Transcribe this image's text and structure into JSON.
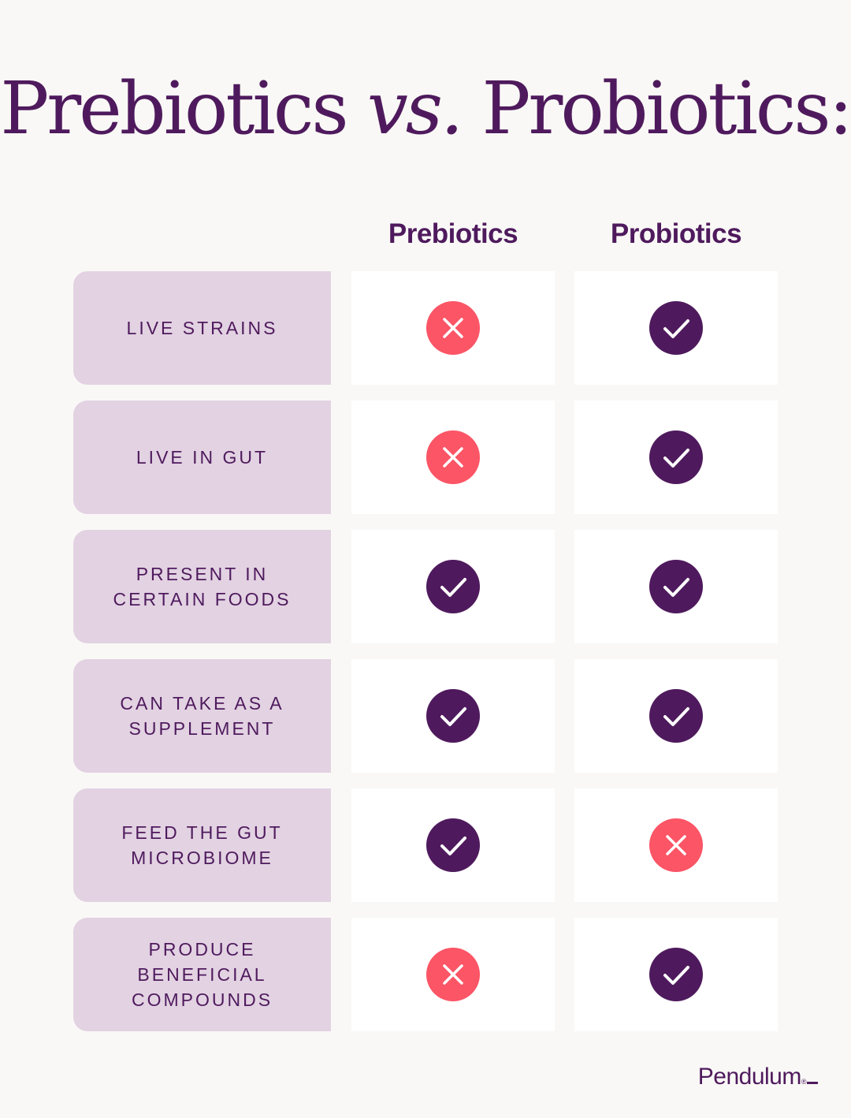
{
  "title": {
    "part1": "Prebiotics ",
    "vs": "vs.",
    "part2": " Probiotics:"
  },
  "columns": [
    "Prebiotics",
    "Probiotics"
  ],
  "rows": [
    {
      "label": "LIVE STRAINS",
      "prebiotics": "no",
      "probiotics": "yes"
    },
    {
      "label": "LIVE IN GUT",
      "prebiotics": "no",
      "probiotics": "yes"
    },
    {
      "label": "PRESENT IN\nCERTAIN FOODS",
      "prebiotics": "yes",
      "probiotics": "yes"
    },
    {
      "label": "CAN TAKE AS A\nSUPPLEMENT",
      "prebiotics": "yes",
      "probiotics": "yes"
    },
    {
      "label": "FEED THE GUT\nMICROBIOME",
      "prebiotics": "yes",
      "probiotics": "no"
    },
    {
      "label": "PRODUCE\nBENEFICIAL\nCOMPOUNDS",
      "prebiotics": "no",
      "probiotics": "yes"
    }
  ],
  "icons": {
    "yes": "check-icon",
    "no": "x-icon"
  },
  "colors": {
    "brand": "#4f1a5d",
    "yes": "#4f1a5d",
    "no": "#fb5566",
    "label_bg": "#e2d2e2",
    "page_bg": "#f9f8f6"
  },
  "brand": {
    "name": "Pendulum",
    "tm": "®",
    "cursor": "_"
  }
}
